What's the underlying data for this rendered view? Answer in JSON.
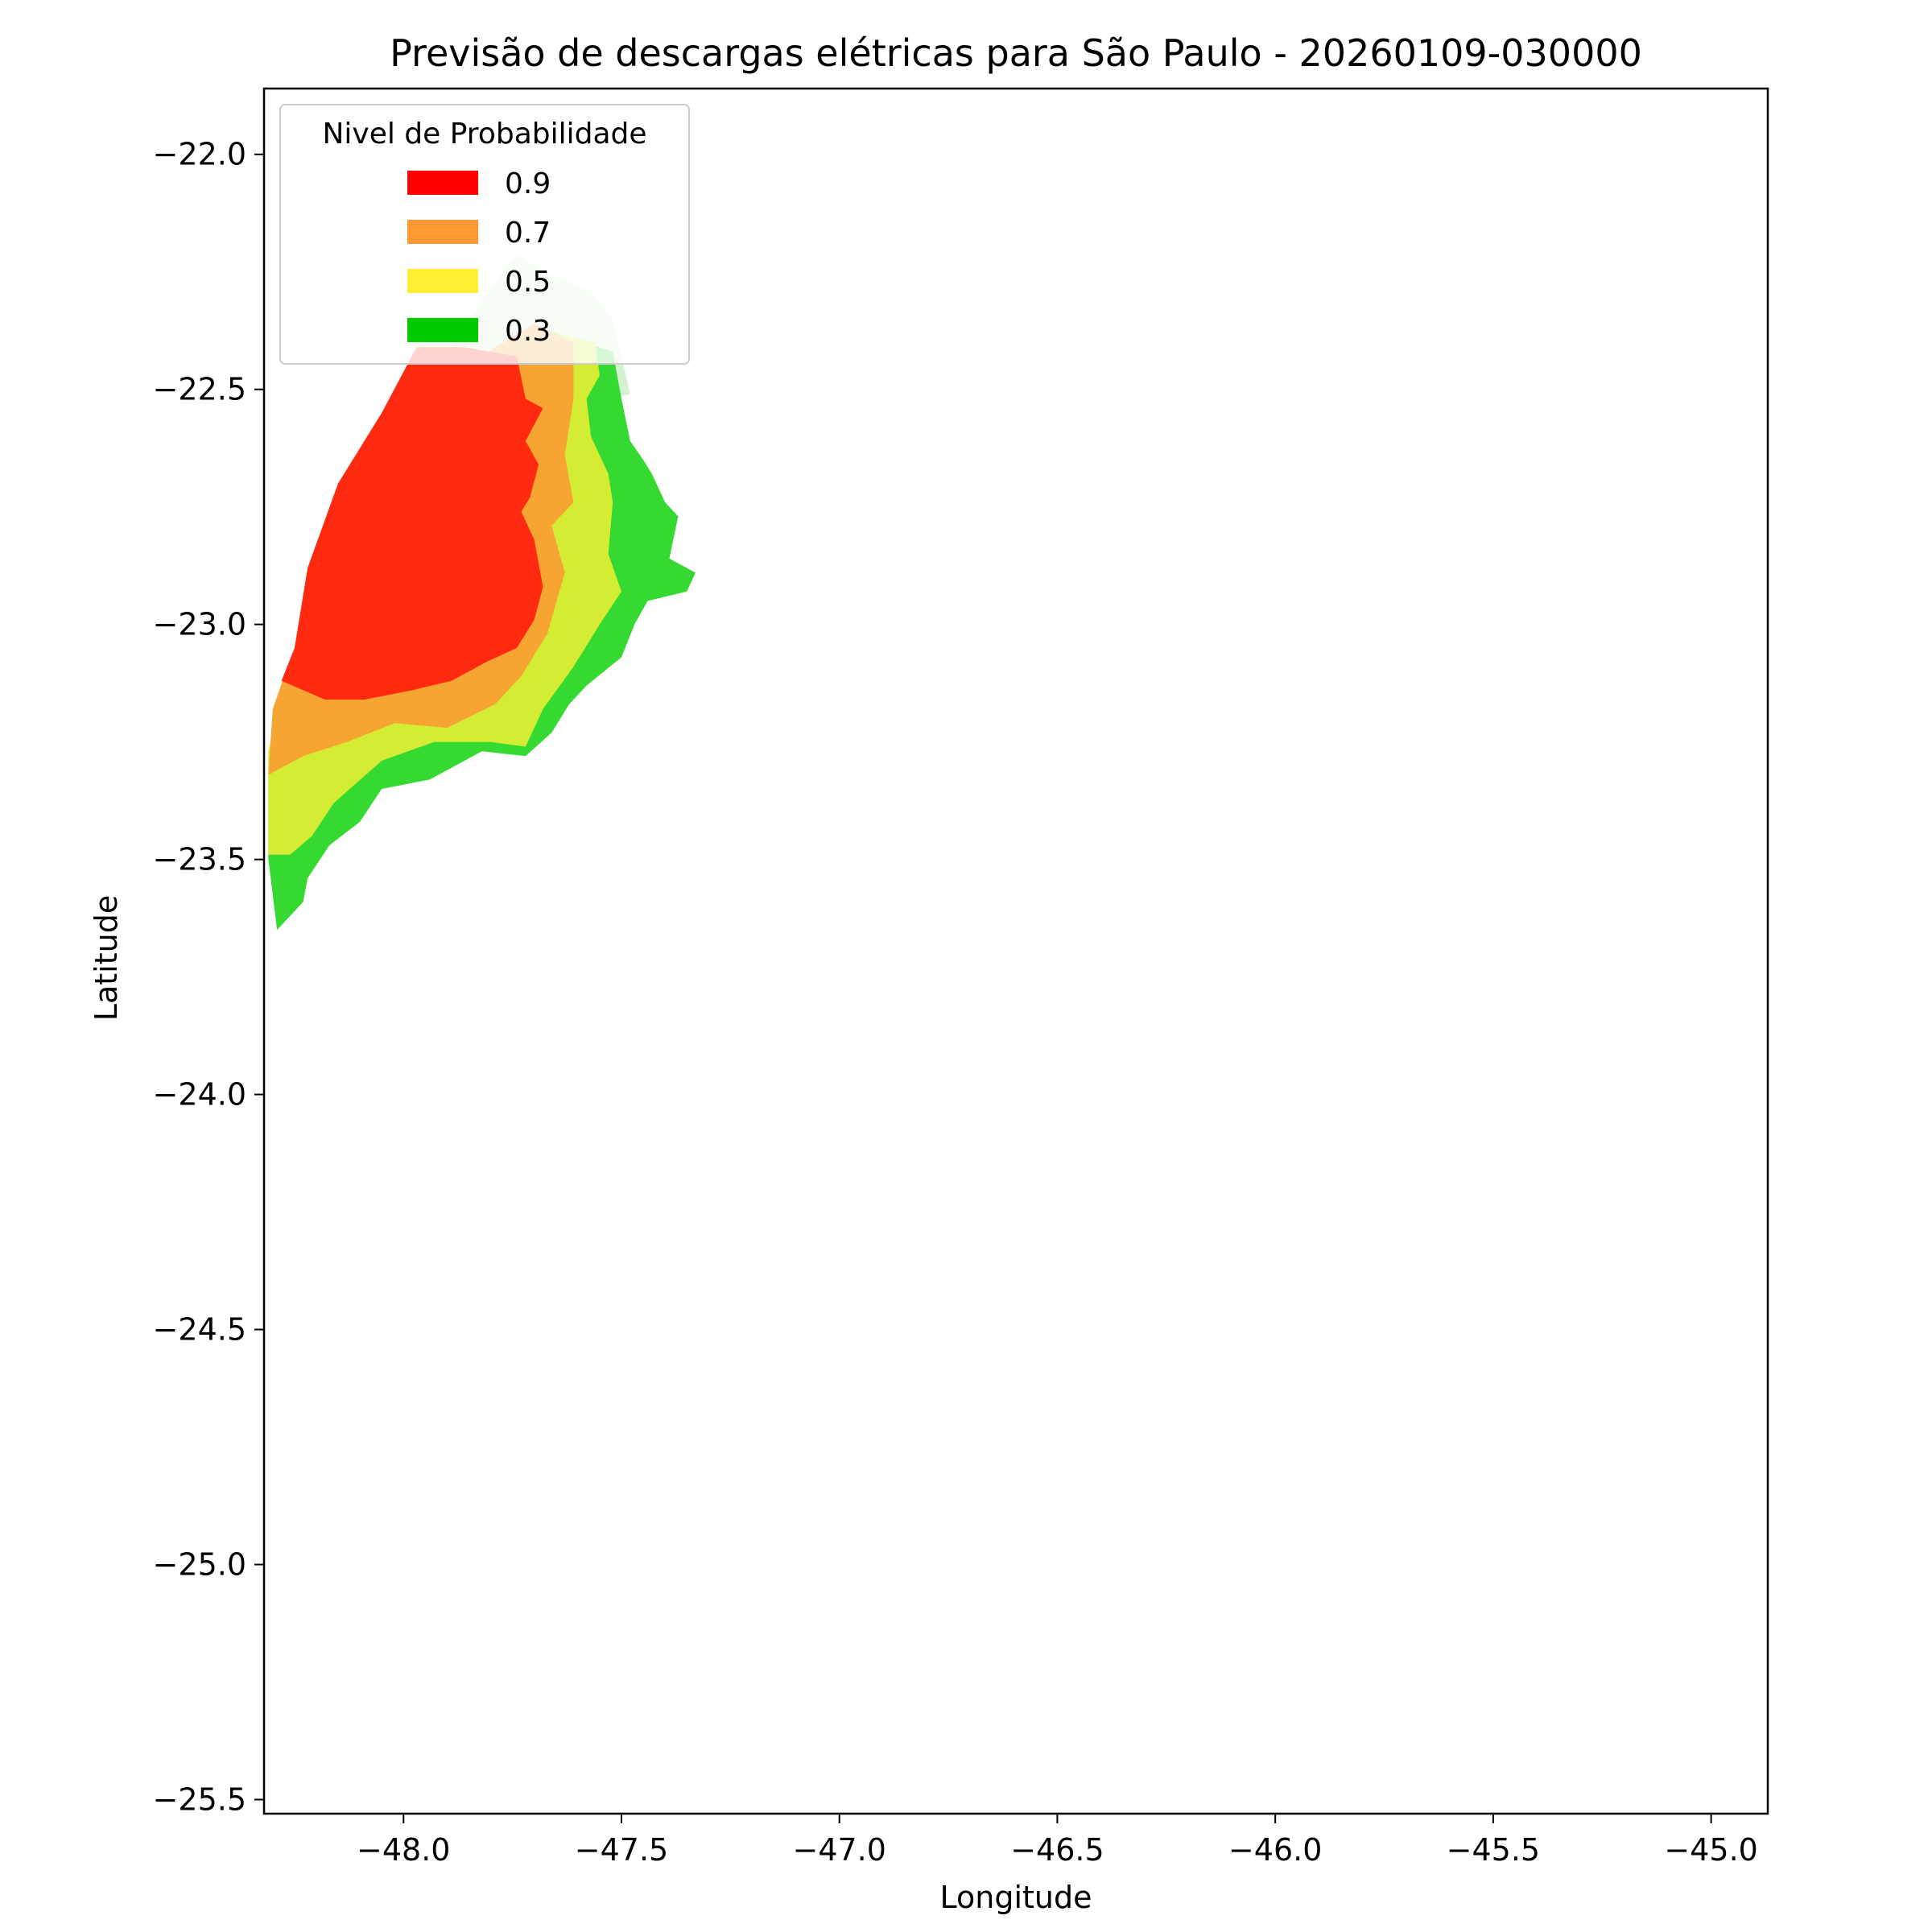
{
  "chart_data": {
    "type": "contour",
    "title": "Previsão de descargas elétricas para São Paulo - 20260109-030000",
    "xlabel": "Longitude",
    "ylabel": "Latitude",
    "xlim": [
      -48.32,
      -44.87
    ],
    "ylim": [
      -25.53,
      -21.86
    ],
    "xticks": [
      -48.0,
      -47.5,
      -47.0,
      -46.5,
      -46.0,
      -45.5,
      -45.0
    ],
    "xtick_labels": [
      "−48.0",
      "−47.5",
      "−47.0",
      "−46.5",
      "−46.0",
      "−45.5",
      "−45.0"
    ],
    "yticks": [
      -22.0,
      -22.5,
      -23.0,
      -23.5,
      -24.0,
      -24.5,
      -25.0,
      -25.5
    ],
    "ytick_labels": [
      "−22.0",
      "−22.5",
      "−23.0",
      "−23.5",
      "−24.0",
      "−24.5",
      "−25.0",
      "−25.5"
    ],
    "grid": false,
    "legend": {
      "title": "Nivel de Probabilidade",
      "placement": "upper-left",
      "entries": [
        {
          "label": "0.9",
          "color": "#ff0000"
        },
        {
          "label": "0.7",
          "color": "#ff9933"
        },
        {
          "label": "0.5",
          "color": "#ffee33"
        },
        {
          "label": "0.3",
          "color": "#00cc00"
        }
      ]
    },
    "levels": [
      {
        "name": "faint",
        "color": "#d4f2d3",
        "polygon": [
          [
            -47.74,
            -22.21
          ],
          [
            -47.68,
            -22.25
          ],
          [
            -47.57,
            -22.29
          ],
          [
            -47.52,
            -22.35
          ],
          [
            -47.48,
            -22.51
          ],
          [
            -47.66,
            -22.55
          ],
          [
            -47.9,
            -22.43
          ],
          [
            -47.82,
            -22.31
          ]
        ]
      },
      {
        "name": "0.3",
        "color": "#36d932",
        "polygon": [
          [
            -47.68,
            -22.37
          ],
          [
            -47.52,
            -22.42
          ],
          [
            -47.5,
            -22.52
          ],
          [
            -47.48,
            -22.61
          ],
          [
            -47.45,
            -22.65
          ],
          [
            -47.43,
            -22.68
          ],
          [
            -47.4,
            -22.74
          ],
          [
            -47.37,
            -22.77
          ],
          [
            -47.39,
            -22.86
          ],
          [
            -47.33,
            -22.89
          ],
          [
            -47.35,
            -22.93
          ],
          [
            -47.44,
            -22.95
          ],
          [
            -47.47,
            -23.0
          ],
          [
            -47.5,
            -23.07
          ],
          [
            -47.58,
            -23.13
          ],
          [
            -47.62,
            -23.17
          ],
          [
            -47.66,
            -23.23
          ],
          [
            -47.72,
            -23.28
          ],
          [
            -47.82,
            -23.27
          ],
          [
            -47.94,
            -23.33
          ],
          [
            -48.05,
            -23.35
          ],
          [
            -48.1,
            -23.42
          ],
          [
            -48.17,
            -23.47
          ],
          [
            -48.22,
            -23.54
          ],
          [
            -48.23,
            -23.59
          ],
          [
            -48.29,
            -23.65
          ],
          [
            -48.31,
            -23.5
          ],
          [
            -48.31,
            -23.28
          ],
          [
            -48.27,
            -23.11
          ],
          [
            -48.0,
            -22.75
          ],
          [
            -47.86,
            -22.45
          ]
        ]
      },
      {
        "name": "0.5",
        "color": "#d4ec34",
        "polygon": [
          [
            -47.7,
            -22.37
          ],
          [
            -47.56,
            -22.4
          ],
          [
            -47.55,
            -22.47
          ],
          [
            -47.58,
            -22.52
          ],
          [
            -47.57,
            -22.6
          ],
          [
            -47.53,
            -22.68
          ],
          [
            -47.52,
            -22.74
          ],
          [
            -47.53,
            -22.85
          ],
          [
            -47.5,
            -22.93
          ],
          [
            -47.55,
            -23.0
          ],
          [
            -47.61,
            -23.09
          ],
          [
            -47.68,
            -23.18
          ],
          [
            -47.72,
            -23.26
          ],
          [
            -47.8,
            -23.25
          ],
          [
            -47.93,
            -23.25
          ],
          [
            -48.05,
            -23.29
          ],
          [
            -48.16,
            -23.38
          ],
          [
            -48.21,
            -23.45
          ],
          [
            -48.26,
            -23.49
          ],
          [
            -48.31,
            -23.49
          ],
          [
            -48.31,
            -23.27
          ],
          [
            -48.27,
            -23.11
          ],
          [
            -48.0,
            -22.75
          ],
          [
            -47.86,
            -22.45
          ]
        ]
      },
      {
        "name": "0.7",
        "color": "#f6a532",
        "polygon": [
          [
            -47.7,
            -22.36
          ],
          [
            -47.61,
            -22.4
          ],
          [
            -47.61,
            -22.52
          ],
          [
            -47.63,
            -22.64
          ],
          [
            -47.61,
            -22.74
          ],
          [
            -47.66,
            -22.79
          ],
          [
            -47.63,
            -22.89
          ],
          [
            -47.67,
            -23.02
          ],
          [
            -47.73,
            -23.11
          ],
          [
            -47.79,
            -23.17
          ],
          [
            -47.9,
            -23.22
          ],
          [
            -48.02,
            -23.21
          ],
          [
            -48.13,
            -23.25
          ],
          [
            -48.23,
            -23.28
          ],
          [
            -48.31,
            -23.32
          ],
          [
            -48.3,
            -23.18
          ],
          [
            -48.27,
            -23.1
          ],
          [
            -48.0,
            -22.75
          ],
          [
            -47.86,
            -22.45
          ]
        ]
      },
      {
        "name": "0.9",
        "color": "#ff2a0f",
        "polygon": [
          [
            -47.97,
            -22.41
          ],
          [
            -47.86,
            -22.41
          ],
          [
            -47.74,
            -22.43
          ],
          [
            -47.72,
            -22.52
          ],
          [
            -47.68,
            -22.54
          ],
          [
            -47.72,
            -22.61
          ],
          [
            -47.69,
            -22.66
          ],
          [
            -47.71,
            -22.73
          ],
          [
            -47.73,
            -22.76
          ],
          [
            -47.7,
            -22.82
          ],
          [
            -47.68,
            -22.92
          ],
          [
            -47.7,
            -22.99
          ],
          [
            -47.74,
            -23.05
          ],
          [
            -47.81,
            -23.08
          ],
          [
            -47.89,
            -23.12
          ],
          [
            -47.98,
            -23.14
          ],
          [
            -48.09,
            -23.16
          ],
          [
            -48.18,
            -23.16
          ],
          [
            -48.28,
            -23.12
          ],
          [
            -48.25,
            -23.05
          ],
          [
            -48.22,
            -22.88
          ],
          [
            -48.15,
            -22.7
          ],
          [
            -48.05,
            -22.55
          ]
        ]
      }
    ]
  }
}
